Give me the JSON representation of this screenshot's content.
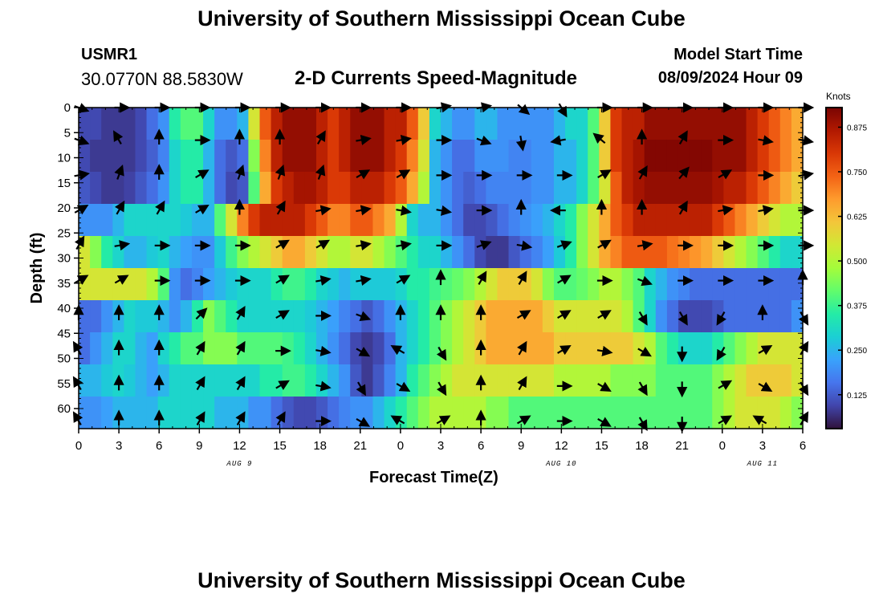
{
  "header": {
    "title": "University of Southern Mississippi Ocean Cube",
    "station_id": "USMR1",
    "coordinates": "30.0770N  88.5830W",
    "model_start_label": "Model Start Time",
    "model_start_value": "08/09/2024 Hour 09"
  },
  "footer": {
    "title": "University of Southern Mississippi Ocean Cube"
  },
  "chart_data": {
    "type": "heatmap",
    "title": "2-D Currents Speed-Magnitude",
    "xlabel": "Forecast Time(Z)",
    "ylabel": "Depth (ft)",
    "x_range_hours": [
      0,
      54
    ],
    "y_range_ft": [
      0,
      64
    ],
    "y_inverted": true,
    "x_ticks": [
      {
        "hour": 0,
        "label": "0"
      },
      {
        "hour": 3,
        "label": "3"
      },
      {
        "hour": 6,
        "label": "6"
      },
      {
        "hour": 9,
        "label": "9"
      },
      {
        "hour": 12,
        "label": "12"
      },
      {
        "hour": 15,
        "label": "15"
      },
      {
        "hour": 18,
        "label": "18"
      },
      {
        "hour": 21,
        "label": "21"
      },
      {
        "hour": 24,
        "label": "0"
      },
      {
        "hour": 27,
        "label": "3"
      },
      {
        "hour": 30,
        "label": "6"
      },
      {
        "hour": 33,
        "label": "9"
      },
      {
        "hour": 36,
        "label": "12"
      },
      {
        "hour": 39,
        "label": "15"
      },
      {
        "hour": 42,
        "label": "18"
      },
      {
        "hour": 45,
        "label": "21"
      },
      {
        "hour": 48,
        "label": "0"
      },
      {
        "hour": 51,
        "label": "3"
      },
      {
        "hour": 54,
        "label": "6"
      }
    ],
    "y_ticks": [
      0,
      5,
      10,
      15,
      20,
      25,
      30,
      35,
      40,
      45,
      50,
      55,
      60
    ],
    "date_labels": [
      {
        "hour": 12,
        "label": "AUG 9"
      },
      {
        "hour": 36,
        "label": "AUG 10"
      },
      {
        "hour": 51,
        "label": "AUG 11"
      }
    ],
    "colorbar": {
      "label": "Knots",
      "range": [
        0.03,
        0.93
      ],
      "ticks": [
        "0.125",
        "0.250",
        "0.375",
        "0.500",
        "0.625",
        "0.750",
        "0.875"
      ],
      "tick_values": [
        0.125,
        0.25,
        0.375,
        0.5,
        0.625,
        0.75,
        0.875
      ],
      "colors": [
        "#30123b",
        "#4145ab",
        "#4675ed",
        "#39a2fc",
        "#1bcfd4",
        "#24eca6",
        "#61fc6c",
        "#a4fc3b",
        "#d1e834",
        "#f3c63a",
        "#fe9b2d",
        "#f36315",
        "#d93806",
        "#b11901",
        "#7a0402"
      ]
    },
    "vector_x_hours": [
      0,
      3,
      6,
      9,
      12,
      15,
      18,
      21,
      24,
      27,
      30,
      33,
      36,
      39,
      42,
      45,
      48,
      51,
      54
    ],
    "vector_depths_ft": [
      0,
      6.5,
      13.5,
      20.5,
      27.5,
      34.5,
      41.5,
      48.5,
      55.5,
      62.5
    ],
    "speed_field_knots": [
      [
        0.1,
        0.1,
        0.08,
        0.08,
        0.08,
        0.1,
        0.15,
        0.2,
        0.35,
        0.4,
        0.4,
        0.3,
        0.2,
        0.2,
        0.25,
        0.55,
        0.75,
        0.85,
        0.9,
        0.9,
        0.9,
        0.85,
        0.8,
        0.85,
        0.9,
        0.9,
        0.9,
        0.85,
        0.85,
        0.75,
        0.6,
        0.3,
        0.25,
        0.2,
        0.2,
        0.25,
        0.25,
        0.2,
        0.2,
        0.2,
        0.2,
        0.2,
        0.25,
        0.3,
        0.3,
        0.4,
        0.6,
        0.8,
        0.85,
        0.85,
        0.9,
        0.9,
        0.9,
        0.9,
        0.9,
        0.9,
        0.9,
        0.9,
        0.9,
        0.85,
        0.8,
        0.75,
        0.7,
        0.65
      ],
      [
        0.1,
        0.08,
        0.08,
        0.08,
        0.08,
        0.1,
        0.13,
        0.18,
        0.3,
        0.35,
        0.35,
        0.25,
        0.15,
        0.12,
        0.15,
        0.45,
        0.7,
        0.85,
        0.9,
        0.9,
        0.9,
        0.85,
        0.8,
        0.85,
        0.9,
        0.9,
        0.9,
        0.85,
        0.8,
        0.7,
        0.55,
        0.25,
        0.2,
        0.15,
        0.15,
        0.2,
        0.2,
        0.2,
        0.18,
        0.18,
        0.2,
        0.2,
        0.25,
        0.25,
        0.3,
        0.4,
        0.6,
        0.8,
        0.85,
        0.88,
        0.92,
        0.92,
        0.92,
        0.92,
        0.92,
        0.92,
        0.9,
        0.9,
        0.9,
        0.85,
        0.8,
        0.75,
        0.7,
        0.65
      ],
      [
        0.12,
        0.1,
        0.08,
        0.08,
        0.09,
        0.12,
        0.15,
        0.2,
        0.3,
        0.35,
        0.35,
        0.25,
        0.15,
        0.1,
        0.12,
        0.4,
        0.65,
        0.8,
        0.85,
        0.88,
        0.88,
        0.85,
        0.8,
        0.8,
        0.85,
        0.85,
        0.85,
        0.8,
        0.75,
        0.65,
        0.5,
        0.25,
        0.2,
        0.15,
        0.13,
        0.15,
        0.18,
        0.18,
        0.18,
        0.18,
        0.2,
        0.2,
        0.25,
        0.25,
        0.3,
        0.4,
        0.55,
        0.75,
        0.85,
        0.88,
        0.9,
        0.9,
        0.9,
        0.9,
        0.9,
        0.9,
        0.88,
        0.85,
        0.85,
        0.8,
        0.75,
        0.7,
        0.65,
        0.6
      ],
      [
        0.2,
        0.2,
        0.2,
        0.25,
        0.3,
        0.3,
        0.3,
        0.3,
        0.3,
        0.28,
        0.25,
        0.25,
        0.4,
        0.55,
        0.7,
        0.8,
        0.85,
        0.85,
        0.85,
        0.85,
        0.8,
        0.75,
        0.7,
        0.7,
        0.75,
        0.75,
        0.7,
        0.65,
        0.5,
        0.3,
        0.25,
        0.25,
        0.2,
        0.15,
        0.1,
        0.1,
        0.12,
        0.15,
        0.18,
        0.2,
        0.22,
        0.25,
        0.3,
        0.35,
        0.45,
        0.55,
        0.65,
        0.75,
        0.8,
        0.85,
        0.85,
        0.85,
        0.85,
        0.85,
        0.85,
        0.85,
        0.8,
        0.75,
        0.7,
        0.65,
        0.6,
        0.55,
        0.5,
        0.5
      ],
      [
        0.55,
        0.45,
        0.35,
        0.3,
        0.25,
        0.25,
        0.28,
        0.3,
        0.25,
        0.22,
        0.2,
        0.2,
        0.28,
        0.38,
        0.45,
        0.5,
        0.55,
        0.6,
        0.65,
        0.65,
        0.6,
        0.55,
        0.5,
        0.5,
        0.55,
        0.55,
        0.5,
        0.45,
        0.4,
        0.35,
        0.3,
        0.3,
        0.25,
        0.2,
        0.15,
        0.1,
        0.08,
        0.08,
        0.12,
        0.15,
        0.18,
        0.22,
        0.28,
        0.35,
        0.45,
        0.55,
        0.65,
        0.7,
        0.75,
        0.75,
        0.75,
        0.75,
        0.72,
        0.7,
        0.68,
        0.65,
        0.6,
        0.55,
        0.5,
        0.45,
        0.4,
        0.35,
        0.3,
        0.3
      ],
      [
        0.55,
        0.55,
        0.55,
        0.55,
        0.55,
        0.55,
        0.5,
        0.4,
        0.2,
        0.15,
        0.18,
        0.22,
        0.25,
        0.28,
        0.3,
        0.3,
        0.3,
        0.35,
        0.38,
        0.38,
        0.35,
        0.3,
        0.28,
        0.25,
        0.28,
        0.28,
        0.28,
        0.28,
        0.3,
        0.35,
        0.35,
        0.38,
        0.4,
        0.42,
        0.45,
        0.5,
        0.55,
        0.6,
        0.6,
        0.6,
        0.55,
        0.45,
        0.4,
        0.4,
        0.42,
        0.45,
        0.5,
        0.5,
        0.45,
        0.4,
        0.3,
        0.25,
        0.2,
        0.18,
        0.15,
        0.15,
        0.15,
        0.15,
        0.15,
        0.15,
        0.15,
        0.15,
        0.15,
        0.15
      ],
      [
        0.15,
        0.15,
        0.2,
        0.25,
        0.3,
        0.28,
        0.28,
        0.25,
        0.2,
        0.25,
        0.35,
        0.45,
        0.4,
        0.35,
        0.3,
        0.3,
        0.3,
        0.3,
        0.3,
        0.3,
        0.28,
        0.25,
        0.22,
        0.18,
        0.15,
        0.12,
        0.15,
        0.2,
        0.25,
        0.3,
        0.35,
        0.4,
        0.45,
        0.5,
        0.55,
        0.6,
        0.65,
        0.65,
        0.65,
        0.65,
        0.65,
        0.6,
        0.55,
        0.55,
        0.55,
        0.55,
        0.55,
        0.55,
        0.5,
        0.4,
        0.3,
        0.2,
        0.15,
        0.1,
        0.1,
        0.1,
        0.12,
        0.15,
        0.15,
        0.15,
        0.15,
        0.15,
        0.15,
        0.2
      ],
      [
        0.15,
        0.2,
        0.25,
        0.3,
        0.3,
        0.25,
        0.22,
        0.3,
        0.35,
        0.4,
        0.4,
        0.45,
        0.45,
        0.45,
        0.4,
        0.4,
        0.4,
        0.4,
        0.38,
        0.35,
        0.3,
        0.25,
        0.2,
        0.15,
        0.1,
        0.08,
        0.1,
        0.15,
        0.25,
        0.3,
        0.35,
        0.4,
        0.45,
        0.5,
        0.55,
        0.6,
        0.65,
        0.65,
        0.65,
        0.65,
        0.65,
        0.65,
        0.6,
        0.6,
        0.6,
        0.6,
        0.6,
        0.6,
        0.6,
        0.55,
        0.5,
        0.4,
        0.35,
        0.3,
        0.3,
        0.3,
        0.35,
        0.4,
        0.45,
        0.5,
        0.55,
        0.55,
        0.55,
        0.55
      ],
      [
        0.25,
        0.25,
        0.28,
        0.3,
        0.28,
        0.25,
        0.22,
        0.25,
        0.3,
        0.3,
        0.3,
        0.3,
        0.3,
        0.3,
        0.3,
        0.3,
        0.35,
        0.35,
        0.38,
        0.38,
        0.35,
        0.3,
        0.25,
        0.2,
        0.12,
        0.08,
        0.12,
        0.18,
        0.25,
        0.35,
        0.4,
        0.45,
        0.5,
        0.55,
        0.55,
        0.55,
        0.55,
        0.55,
        0.55,
        0.55,
        0.55,
        0.55,
        0.5,
        0.5,
        0.5,
        0.5,
        0.5,
        0.45,
        0.45,
        0.45,
        0.45,
        0.4,
        0.4,
        0.4,
        0.4,
        0.4,
        0.45,
        0.5,
        0.55,
        0.6,
        0.6,
        0.6,
        0.6,
        0.55
      ],
      [
        0.2,
        0.2,
        0.22,
        0.25,
        0.25,
        0.25,
        0.25,
        0.3,
        0.3,
        0.3,
        0.3,
        0.3,
        0.25,
        0.25,
        0.25,
        0.2,
        0.2,
        0.15,
        0.12,
        0.1,
        0.1,
        0.12,
        0.15,
        0.18,
        0.2,
        0.2,
        0.25,
        0.3,
        0.35,
        0.4,
        0.45,
        0.5,
        0.5,
        0.5,
        0.5,
        0.5,
        0.45,
        0.45,
        0.4,
        0.4,
        0.4,
        0.4,
        0.4,
        0.4,
        0.4,
        0.4,
        0.4,
        0.4,
        0.4,
        0.4,
        0.4,
        0.4,
        0.4,
        0.4,
        0.4,
        0.4,
        0.45,
        0.5,
        0.55,
        0.55,
        0.55,
        0.55,
        0.5,
        0.45
      ]
    ],
    "vectors_deg": [
      [
        110,
        90,
        90,
        90,
        90,
        90,
        90,
        90,
        90,
        80,
        80,
        130,
        150,
        90,
        90,
        90,
        90,
        90,
        90
      ],
      [
        110,
        330,
        0,
        90,
        0,
        0,
        30,
        80,
        80,
        90,
        110,
        170,
        260,
        310,
        0,
        30,
        90,
        100,
        100
      ],
      [
        80,
        20,
        0,
        60,
        20,
        20,
        20,
        60,
        60,
        90,
        90,
        90,
        90,
        60,
        30,
        40,
        60,
        90,
        80
      ],
      [
        60,
        30,
        30,
        60,
        0,
        30,
        80,
        80,
        100,
        100,
        90,
        0,
        270,
        0,
        0,
        30,
        80,
        80,
        90
      ],
      [
        30,
        80,
        90,
        90,
        90,
        60,
        60,
        80,
        80,
        90,
        70,
        100,
        70,
        60,
        80,
        90,
        90,
        90,
        90
      ],
      [
        60,
        60,
        90,
        90,
        90,
        60,
        80,
        80,
        60,
        0,
        30,
        30,
        60,
        90,
        110,
        90,
        90,
        90,
        0
      ],
      [
        0,
        0,
        0,
        45,
        30,
        60,
        90,
        110,
        0,
        0,
        0,
        60,
        60,
        60,
        150,
        150,
        210,
        0,
        150
      ],
      [
        330,
        0,
        0,
        30,
        30,
        90,
        100,
        120,
        300,
        150,
        0,
        30,
        60,
        100,
        120,
        180,
        210,
        60,
        30
      ],
      [
        330,
        0,
        0,
        30,
        30,
        60,
        100,
        150,
        120,
        150,
        0,
        30,
        90,
        120,
        150,
        180,
        60,
        120,
        150
      ],
      [
        330,
        0,
        0,
        30,
        30,
        30,
        90,
        120,
        300,
        60,
        0,
        60,
        90,
        120,
        150,
        180,
        60,
        300,
        30
      ]
    ]
  }
}
